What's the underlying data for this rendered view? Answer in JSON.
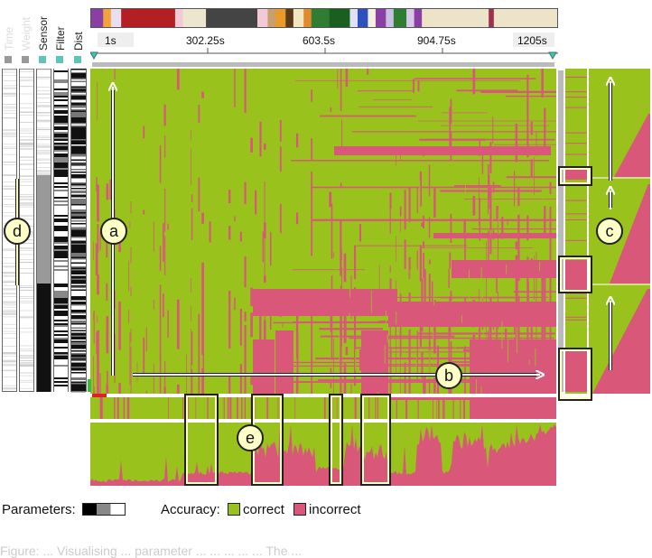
{
  "param_columns": [
    {
      "label": "Time",
      "faded": true
    },
    {
      "label": "Weight",
      "faded": true
    },
    {
      "label": "Sensor",
      "faded": false
    },
    {
      "label": "Filter",
      "faded": false
    },
    {
      "label": "Dist",
      "faded": false
    }
  ],
  "timeline": {
    "ticks": [
      "1s",
      "302.25s",
      "603.5s",
      "904.75s",
      "1205s"
    ]
  },
  "callouts": [
    "a",
    "b",
    "c",
    "d",
    "e"
  ],
  "legend": {
    "parameters_label": "Parameters:",
    "accuracy_label": "Accuracy:",
    "correct_label": "correct",
    "incorrect_label": "incorrect"
  },
  "colors": {
    "correct": "#99c21d",
    "incorrect": "#d9587a",
    "highlight": "#ffffc8"
  },
  "caption": "Figure: ...  Visualising ... parameter  ... ... ... ... ...   The ..."
}
